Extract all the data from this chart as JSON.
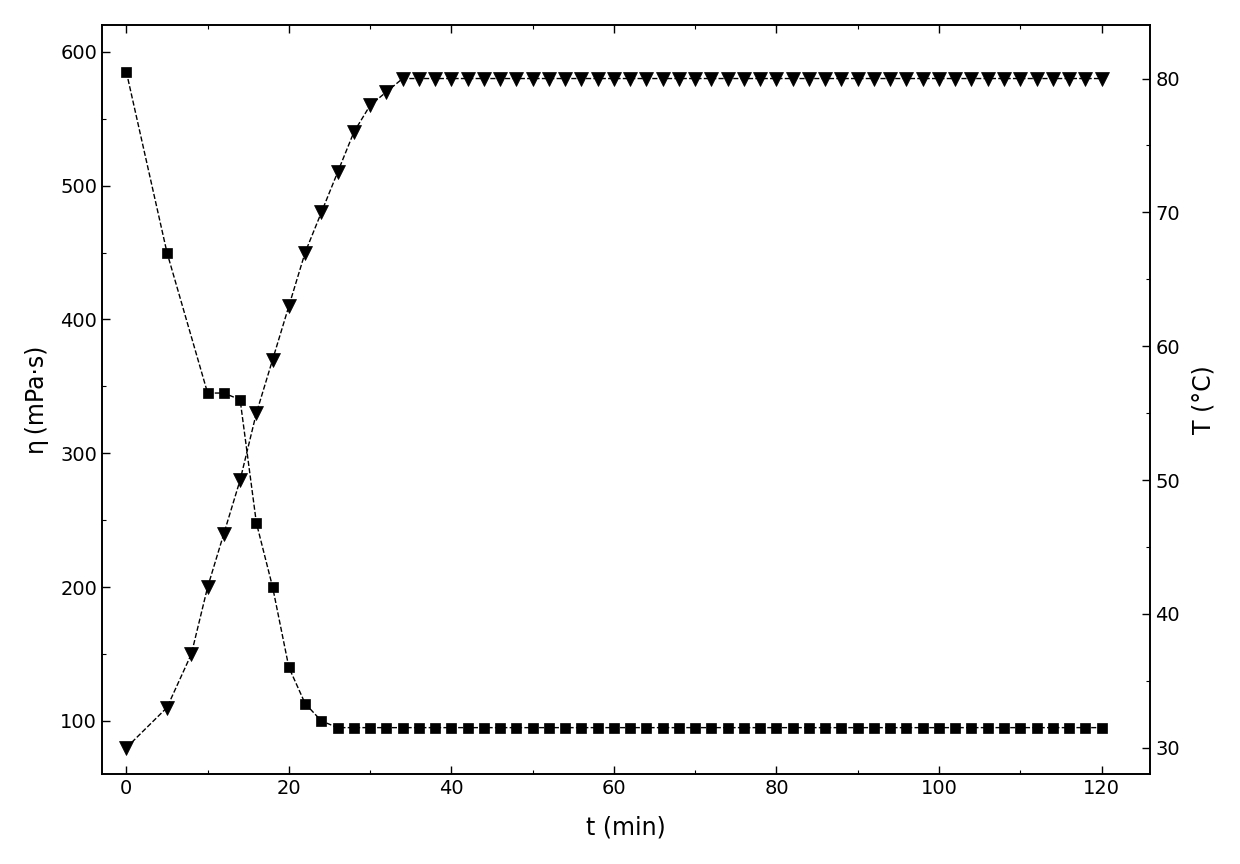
{
  "eta_t": [
    0,
    5,
    10,
    12,
    14,
    16,
    18,
    20,
    22,
    24,
    26,
    28,
    30,
    32,
    34,
    36,
    38,
    40,
    42,
    44,
    46,
    48,
    50,
    52,
    54,
    56,
    58,
    60,
    62,
    64,
    66,
    68,
    70,
    72,
    74,
    76,
    78,
    80,
    82,
    84,
    86,
    88,
    90,
    92,
    94,
    96,
    98,
    100,
    102,
    104,
    106,
    108,
    110,
    112,
    114,
    116,
    118,
    120
  ],
  "eta_v": [
    585,
    450,
    345,
    345,
    340,
    248,
    200,
    140,
    113,
    100,
    95,
    95,
    95,
    95,
    95,
    95,
    95,
    95,
    95,
    95,
    95,
    95,
    95,
    95,
    95,
    95,
    95,
    95,
    95,
    95,
    95,
    95,
    95,
    95,
    95,
    95,
    95,
    95,
    95,
    95,
    95,
    95,
    95,
    95,
    95,
    95,
    95,
    95,
    95,
    95,
    95,
    95,
    95,
    95,
    95,
    95,
    95,
    95
  ],
  "temp_t": [
    0,
    5,
    8,
    10,
    12,
    14,
    16,
    18,
    20,
    22,
    24,
    26,
    28,
    30,
    32,
    34,
    36,
    38,
    40,
    42,
    44,
    46,
    48,
    50,
    52,
    54,
    56,
    58,
    60,
    62,
    64,
    66,
    68,
    70,
    72,
    74,
    76,
    78,
    80,
    82,
    84,
    86,
    88,
    90,
    92,
    94,
    96,
    98,
    100,
    102,
    104,
    106,
    108,
    110,
    112,
    114,
    116,
    118,
    120
  ],
  "temp_v": [
    30,
    33,
    37,
    42,
    46,
    50,
    55,
    59,
    63,
    67,
    70,
    73,
    76,
    78,
    79,
    80,
    80,
    80,
    80,
    80,
    80,
    80,
    80,
    80,
    80,
    80,
    80,
    80,
    80,
    80,
    80,
    80,
    80,
    80,
    80,
    80,
    80,
    80,
    80,
    80,
    80,
    80,
    80,
    80,
    80,
    80,
    80,
    80,
    80,
    80,
    80,
    80,
    80,
    80,
    80,
    80,
    80,
    80,
    80
  ],
  "ylabel_left": "η (mPa·s)",
  "ylabel_right": "T (°C)",
  "xlabel": "t (min)",
  "ylim_left": [
    60,
    620
  ],
  "ylim_right": [
    28,
    84
  ],
  "xlim": [
    -3,
    126
  ],
  "yticks_left": [
    100,
    200,
    300,
    400,
    500,
    600
  ],
  "yticks_right": [
    30,
    40,
    50,
    60,
    70,
    80
  ],
  "xticks": [
    0,
    20,
    40,
    60,
    80,
    100,
    120
  ],
  "bg_color": "#ffffff",
  "line_color": "#000000",
  "marker_color": "#000000"
}
